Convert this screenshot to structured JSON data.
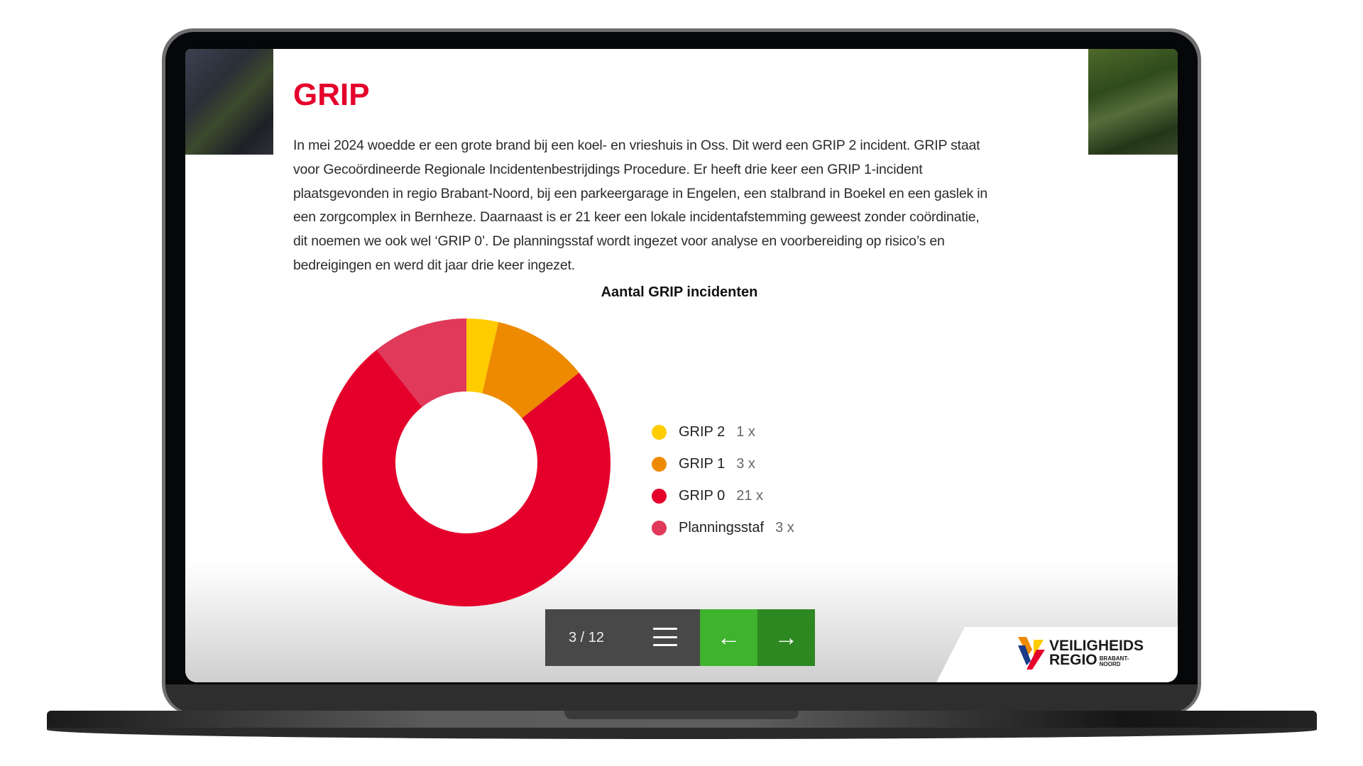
{
  "slide": {
    "title": "GRIP",
    "paragraph_lines": [
      "In mei 2024 woedde er een grote brand bij een koel- en vrieshuis in Oss. Dit werd een GRIP 2 incident. GRIP staat",
      "voor Gecoördineerde Regionale Incidentenbestrijdings Procedure. Er heeft drie keer een GRIP 1-incident",
      "plaatsgevonden in regio Brabant-Noord, bij een parkeergarage in Engelen, een stalbrand in Boekel en een gaslek in",
      "een zorgcomplex in Bernheze. Daarnaast is er 21 keer een lokale incidentafstemming geweest zonder coördinatie,",
      "dit noemen we ook wel ‘GRIP 0’. De planningsstaf wordt ingezet voor analyse en voorbereiding op risico’s en",
      "bedreigingen en werd dit jaar drie keer ingezet."
    ]
  },
  "chart_data": {
    "type": "pie",
    "donut": true,
    "title": "Aantal GRIP incidenten",
    "legend_position": "right",
    "categories": [
      "GRIP 2",
      "GRIP 1",
      "GRIP 0",
      "Planningsstaf"
    ],
    "values": [
      1,
      3,
      21,
      3
    ],
    "value_labels": [
      "1 x",
      "3 x",
      "21 x",
      "3 x"
    ],
    "colors": [
      "#ffcc00",
      "#ee8a00",
      "#e4002b",
      "#e0395a"
    ]
  },
  "navigation": {
    "page_counter": "3 / 12",
    "menu_icon": "hamburger-menu-icon",
    "prev_icon": "arrow-left-icon",
    "next_icon": "arrow-right-icon",
    "prev_glyph": "←",
    "next_glyph": "→"
  },
  "brand": {
    "logo_line1": "VEILIGHEIDS",
    "logo_line2": "REGIO",
    "logo_sub": "BRABANT-NOORD",
    "accent": "#e4002b",
    "nav_green": "#3fb22e",
    "nav_green_dark": "#2e8822"
  }
}
